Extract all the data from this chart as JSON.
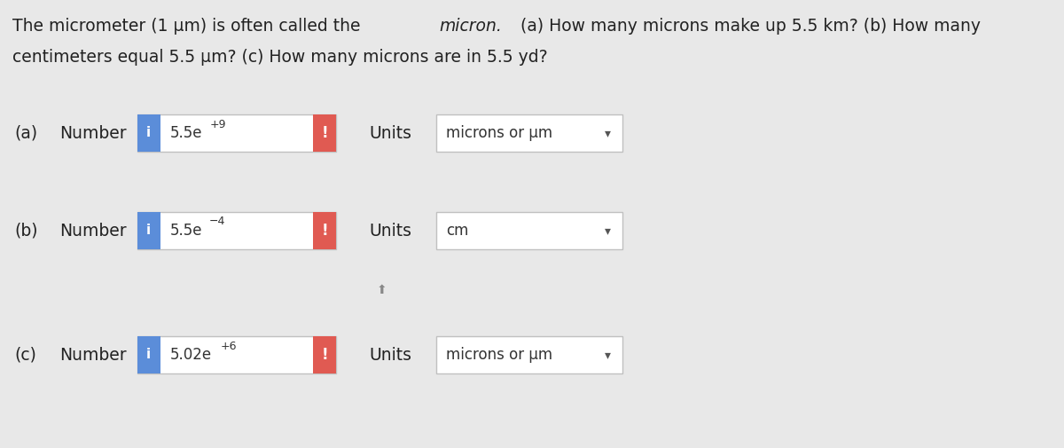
{
  "background_color": "#e8e8e8",
  "title_text": "The micrometer (1 μm) is often called the ",
  "title_italic": "micron.",
  "title_rest": " (a) How many microns make up 5.5 km? (b) How many\ncentimeters equal 5.5 μm? (c) How many microns are in 5.5 yd?",
  "rows": [
    {
      "label": "(a)",
      "number_value": "5.5e^+9",
      "units_value": "microns or μm",
      "has_dropdown": true
    },
    {
      "label": "(b)",
      "number_value": "5.5e^−4",
      "units_value": "cm",
      "has_dropdown": true
    },
    {
      "label": "(c)",
      "number_value": "5.02e^+6",
      "units_value": "microns or μm",
      "has_dropdown": true
    }
  ],
  "blue_color": "#5b8dd9",
  "red_color": "#e05a52",
  "box_fill": "#f0f0f0",
  "box_border": "#c0c0c0",
  "text_color": "#333333",
  "number_label": "Number",
  "units_label": "Units",
  "info_icon_text": "i",
  "exclaim_text": "!"
}
